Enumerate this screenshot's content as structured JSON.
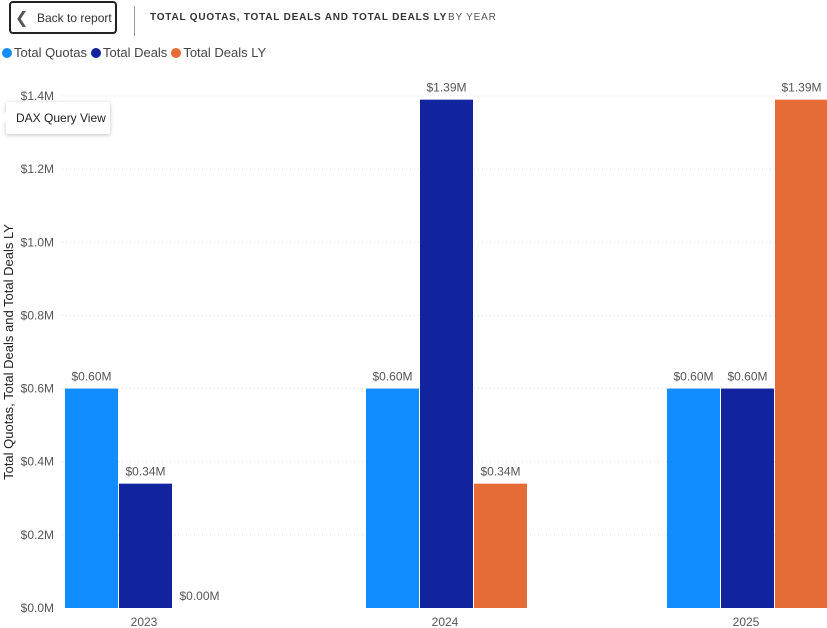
{
  "header": {
    "back_label": "Back to report",
    "title": "TOTAL QUOTAS, TOTAL DEALS AND TOTAL DEALS LY",
    "subtitle": "BY YEAR"
  },
  "tooltip": "DAX Query View",
  "chart_data": {
    "type": "bar",
    "categories": [
      "2023",
      "2024",
      "2025"
    ],
    "series": [
      {
        "name": "Total Quotas",
        "color": "#118DFF",
        "values": [
          0.6,
          0.6,
          0.6
        ],
        "labels": [
          "$0.60M",
          "$0.60M",
          "$0.60M"
        ]
      },
      {
        "name": "Total Deals",
        "color": "#12239E",
        "values": [
          0.34,
          1.39,
          0.6
        ],
        "labels": [
          "$0.34M",
          "$1.39M",
          "$0.60M"
        ]
      },
      {
        "name": "Total Deals LY",
        "color": "#E66C37",
        "values": [
          0.0,
          0.34,
          1.39
        ],
        "labels": [
          "$0.00M",
          "$0.34M",
          "$1.39M"
        ]
      }
    ],
    "ylabel": "Total Quotas, Total Deals and Total Deals LY",
    "yticks": [
      0,
      0.2,
      0.4,
      0.6,
      0.8,
      1.0,
      1.2,
      1.4
    ],
    "ytick_labels": [
      "$0.0M",
      "$0.2M",
      "$0.4M",
      "$0.6M",
      "$0.8M",
      "$1.0M",
      "$1.2M",
      "$1.4M"
    ],
    "ylim": [
      0,
      1.4
    ],
    "grid": true,
    "legend": "top-left"
  }
}
